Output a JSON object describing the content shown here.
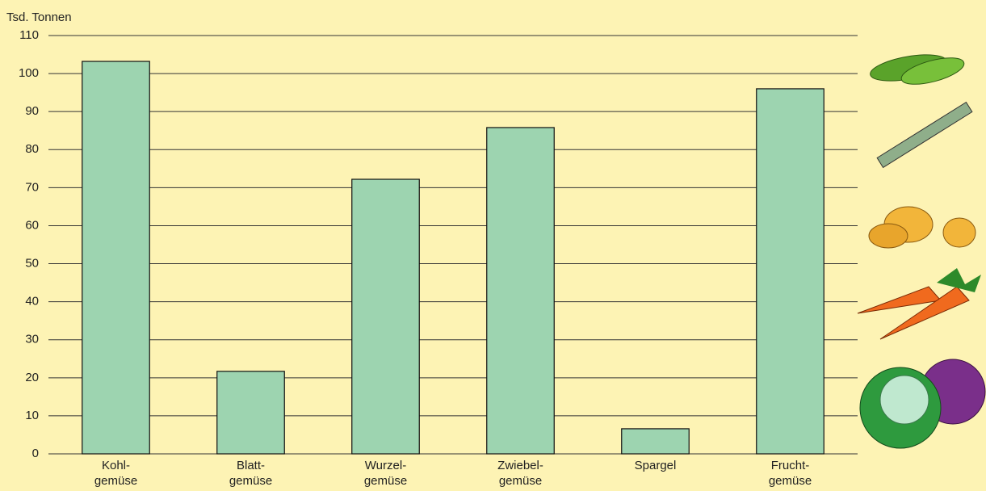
{
  "chart_data": {
    "type": "bar",
    "y_label": "Tsd. Tonnen",
    "categories": [
      "Kohl-\ngemüse",
      "Blatt-\ngemüse",
      "Wurzel-\ngemüse",
      "Zwiebel-\ngemüse",
      "Spargel",
      "Frucht-\ngemüse"
    ],
    "values": [
      103.2,
      21.7,
      72.2,
      85.8,
      6.6,
      96.0
    ],
    "color": "#9dd4b0",
    "ylim": [
      0,
      110
    ],
    "yticks": [
      0,
      10,
      20,
      30,
      40,
      50,
      60,
      70,
      80,
      90,
      100,
      110
    ],
    "grid": true
  }
}
